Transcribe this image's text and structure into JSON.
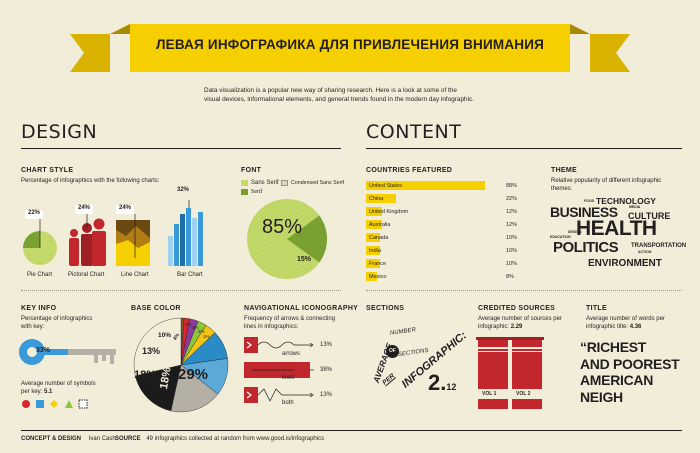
{
  "banner": {
    "title": "ЛЕВАЯ ИНФОГРАФИКА ДЛЯ ПРИВЛЕЧЕНИЯ ВНИМАНИЯ",
    "intro_line1": "Data visualization is a popular new way of sharing research. Here is a look at some of the",
    "intro_line2": "visual devices, informational elements, and general trends found in the modern day infographic."
  },
  "design": {
    "heading": "DESIGN"
  },
  "content": {
    "heading": "CONTENT"
  },
  "chart_style": {
    "title": "CHART STYLE",
    "subtitle": "Percentage of infographics with the following charts:",
    "items": [
      {
        "label": "Pie Chart",
        "pct": "22%",
        "value": 22
      },
      {
        "label": "Pictoral Chart",
        "pct": "24%",
        "value": 24
      },
      {
        "label": "Line Chart",
        "pct": "24%",
        "value": 24
      },
      {
        "label": "Bar Chart",
        "pct": "32%",
        "value": 32
      }
    ]
  },
  "font": {
    "title": "FONT",
    "legend": [
      "Sans Serif",
      "Condensed Sans Serif",
      "Serif"
    ],
    "big_pct": "85%",
    "small_pct": "15%"
  },
  "countries": {
    "title": "COUNTRIES FEATURED",
    "rows": [
      {
        "name": "United States",
        "pct": "88%",
        "value": 88
      },
      {
        "name": "China",
        "pct": "22%",
        "value": 22
      },
      {
        "name": "United Kingdom",
        "pct": "12%",
        "value": 12
      },
      {
        "name": "Australia",
        "pct": "12%",
        "value": 12
      },
      {
        "name": "Canada",
        "pct": "10%",
        "value": 10
      },
      {
        "name": "India",
        "pct": "10%",
        "value": 10
      },
      {
        "name": "France",
        "pct": "10%",
        "value": 10
      },
      {
        "name": "Mexico",
        "pct": "8%",
        "value": 8
      }
    ]
  },
  "theme": {
    "title": "THEME",
    "subtitle": "Relative popularity of different infographic themes:",
    "words": {
      "food": "FOOD",
      "technology": "TECHNOLOGY",
      "media": "MEDIA",
      "business": "BUSINESS",
      "culture": "CULTURE",
      "design": "DESIGN",
      "education": "EDUCATION",
      "health": "HEALTH",
      "politics": "POLITICS",
      "transportation": "TRANSPORTATION",
      "action": "ACTION",
      "environment": "ENVIRONMENT"
    }
  },
  "key_info": {
    "title": "KEY INFO",
    "subtitle_1": "Percentage of infographics",
    "subtitle_2": "with key:",
    "pct": "33%",
    "symbols_1": "Average number of symbols",
    "symbols_2": "per key:",
    "symbols_value": "5.1"
  },
  "base_color": {
    "title": "BASE COLOR",
    "slices": [
      {
        "label": "29%",
        "value": 29,
        "color": "#f2edd9"
      },
      {
        "label": "18%",
        "value": 18,
        "color": "#1b1b1b"
      },
      {
        "label": "18%",
        "value": 18,
        "color": "#b4b0a6"
      },
      {
        "label": "13%",
        "value": 13,
        "color": "#5aa9d8"
      },
      {
        "label": "10%",
        "value": 10,
        "color": "#2a8cc7"
      },
      {
        "label": "4%",
        "value": 4,
        "color": "#f2c414"
      },
      {
        "label": "3%",
        "value": 3,
        "color": "#8cc63f"
      },
      {
        "label": "3%",
        "value": 3,
        "color": "#8b3a9c"
      },
      {
        "label": "2%",
        "value": 2,
        "color": "#d7262e"
      },
      {
        "label": "1%",
        "value": 1,
        "color": "#8a5a2b"
      }
    ]
  },
  "nav_icon": {
    "title": "NAVIGATIONAL ICONOGRAPHY",
    "subtitle_1": "Frequency of arrows & connecting",
    "subtitle_2": "lines in infographics:",
    "rows": [
      {
        "label": "arrows",
        "pct": "13%"
      },
      {
        "label": "lines",
        "pct": "38%"
      },
      {
        "label": "both",
        "pct": "13%"
      }
    ]
  },
  "sections": {
    "title": "SECTIONS",
    "average": "AVERAGE",
    "number": "NUMBER",
    "of": "OF",
    "sections_word": "SECTIONS",
    "per": "PER",
    "infographic": "INFOGRAPHIC:",
    "value_whole": "2.",
    "value_frac": "12"
  },
  "credited": {
    "title": "CREDITED SOURCES",
    "subtitle_1": "Average number of sources per",
    "subtitle_2": "infographic:",
    "value": "2.29",
    "vol1": "VOL 1",
    "vol2": "VOL 2"
  },
  "title_block": {
    "title": "TITLE",
    "subtitle_1": "Average number of words per",
    "subtitle_2": "infographic title:",
    "value": "4.36",
    "quote_1": "“RICHEST",
    "quote_2": "AND POOREST",
    "quote_3": "AMERICAN",
    "quote_4": "NEIGH"
  },
  "footer": {
    "concept_label": "CONCEPT & DESIGN",
    "concept_name": "Ivan Cash",
    "source_label": "SOURCE",
    "source_text": "49 infographics collected at random from www.good.is/infographics"
  },
  "colors": {
    "bg": "#f2edd9",
    "yellow": "#f6cf00",
    "green": "#c3d96a",
    "dark_green": "#7aa032",
    "red": "#c1272d",
    "blue": "#3a9ad9",
    "dark": "#231f20"
  },
  "chart_data": [
    {
      "type": "bar",
      "title": "COUNTRIES FEATURED",
      "categories": [
        "United States",
        "China",
        "United Kingdom",
        "Australia",
        "Canada",
        "India",
        "France",
        "Mexico"
      ],
      "values": [
        88,
        22,
        12,
        12,
        10,
        10,
        10,
        8
      ]
    },
    {
      "type": "pie",
      "title": "BASE COLOR",
      "values": [
        29,
        18,
        18,
        13,
        10,
        4,
        3,
        3,
        2,
        1
      ]
    },
    {
      "type": "pie",
      "title": "FONT",
      "categories": [
        "Sans Serif",
        "Serif"
      ],
      "values": [
        85,
        15
      ]
    },
    {
      "type": "bar",
      "title": "CHART STYLE",
      "categories": [
        "Pie Chart",
        "Pictoral Chart",
        "Line Chart",
        "Bar Chart"
      ],
      "values": [
        22,
        24,
        24,
        32
      ]
    },
    {
      "type": "bar",
      "title": "NAVIGATIONAL ICONOGRAPHY",
      "categories": [
        "arrows",
        "lines",
        "both"
      ],
      "values": [
        13,
        38,
        13
      ]
    }
  ]
}
